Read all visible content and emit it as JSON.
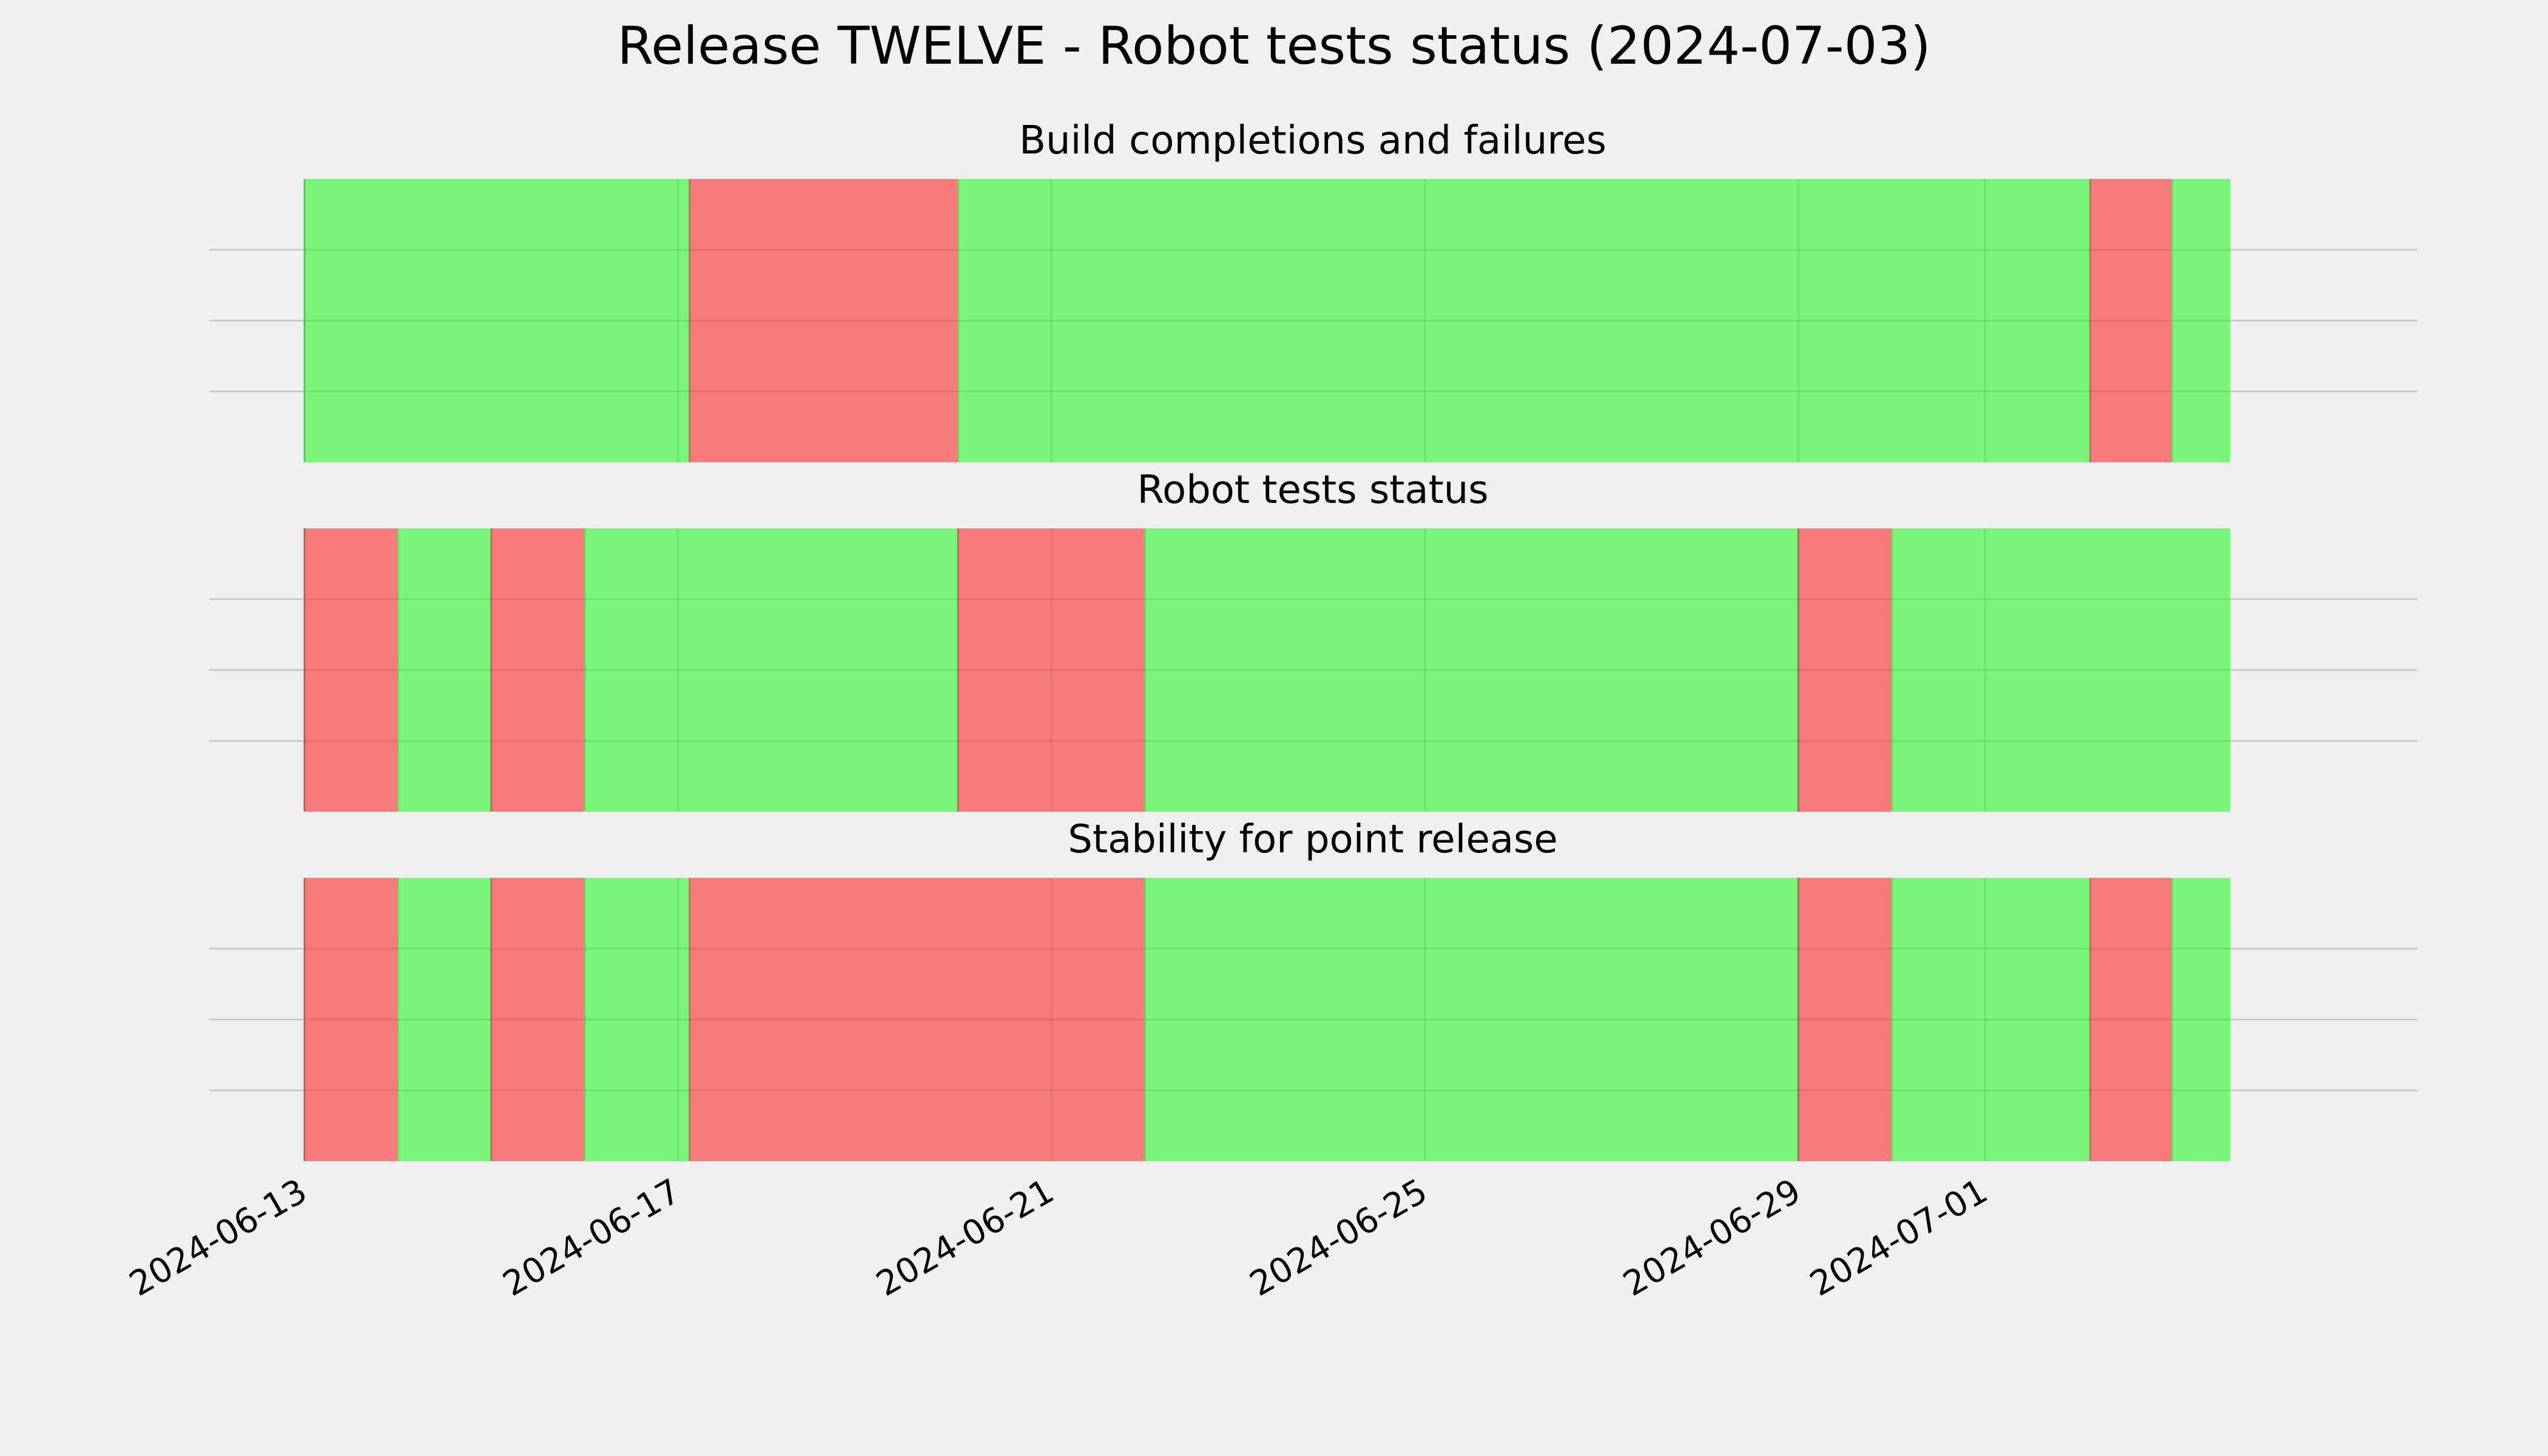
{
  "chart_data": {
    "type": "timeline",
    "title": "Release TWELVE - Robot tests status (2024-07-03)",
    "x_ticks": [
      "2024-06-13",
      "2024-06-17",
      "2024-06-21",
      "2024-06-25",
      "2024-06-29",
      "2024-07-01"
    ],
    "x_range": [
      "2024-06-13",
      "2024-07-04T12:00"
    ],
    "colors": {
      "pass": "#76f576",
      "fail": "#f77878",
      "background": "#f0f0f0",
      "grid": "#cbcbcb"
    },
    "grid": true,
    "panels": [
      {
        "title": "Build completions and failures",
        "segments": [
          {
            "start": "2024-06-13",
            "end": "2024-06-17T03:00",
            "status": "pass"
          },
          {
            "start": "2024-06-17T03:00",
            "end": "2024-06-20",
            "status": "fail"
          },
          {
            "start": "2024-06-20",
            "end": "2024-07-02T03:00",
            "status": "pass"
          },
          {
            "start": "2024-07-02T03:00",
            "end": "2024-07-03T00:00",
            "status": "fail"
          },
          {
            "start": "2024-07-03T00:00",
            "end": "2024-07-03T15:00",
            "status": "pass"
          }
        ]
      },
      {
        "title": "Robot tests status",
        "segments": [
          {
            "start": "2024-06-13",
            "end": "2024-06-14",
            "status": "fail"
          },
          {
            "start": "2024-06-14",
            "end": "2024-06-15",
            "status": "pass"
          },
          {
            "start": "2024-06-15",
            "end": "2024-06-16",
            "status": "fail"
          },
          {
            "start": "2024-06-16",
            "end": "2024-06-20",
            "status": "pass"
          },
          {
            "start": "2024-06-20",
            "end": "2024-06-22",
            "status": "fail"
          },
          {
            "start": "2024-06-22",
            "end": "2024-06-29",
            "status": "pass"
          },
          {
            "start": "2024-06-29",
            "end": "2024-06-30",
            "status": "fail"
          },
          {
            "start": "2024-06-30",
            "end": "2024-07-03T15:00",
            "status": "pass"
          }
        ]
      },
      {
        "title": "Stability for point release",
        "segments": [
          {
            "start": "2024-06-13",
            "end": "2024-06-14",
            "status": "fail"
          },
          {
            "start": "2024-06-14",
            "end": "2024-06-15",
            "status": "pass"
          },
          {
            "start": "2024-06-15",
            "end": "2024-06-16",
            "status": "fail"
          },
          {
            "start": "2024-06-16",
            "end": "2024-06-17T03:00",
            "status": "pass"
          },
          {
            "start": "2024-06-17T03:00",
            "end": "2024-06-22",
            "status": "fail"
          },
          {
            "start": "2024-06-22",
            "end": "2024-06-29",
            "status": "pass"
          },
          {
            "start": "2024-06-29",
            "end": "2024-06-30",
            "status": "fail"
          },
          {
            "start": "2024-06-30",
            "end": "2024-07-02T03:00",
            "status": "pass"
          },
          {
            "start": "2024-07-02T03:00",
            "end": "2024-07-03T00:00",
            "status": "fail"
          },
          {
            "start": "2024-07-03T00:00",
            "end": "2024-07-03T15:00",
            "status": "pass"
          }
        ]
      }
    ]
  }
}
